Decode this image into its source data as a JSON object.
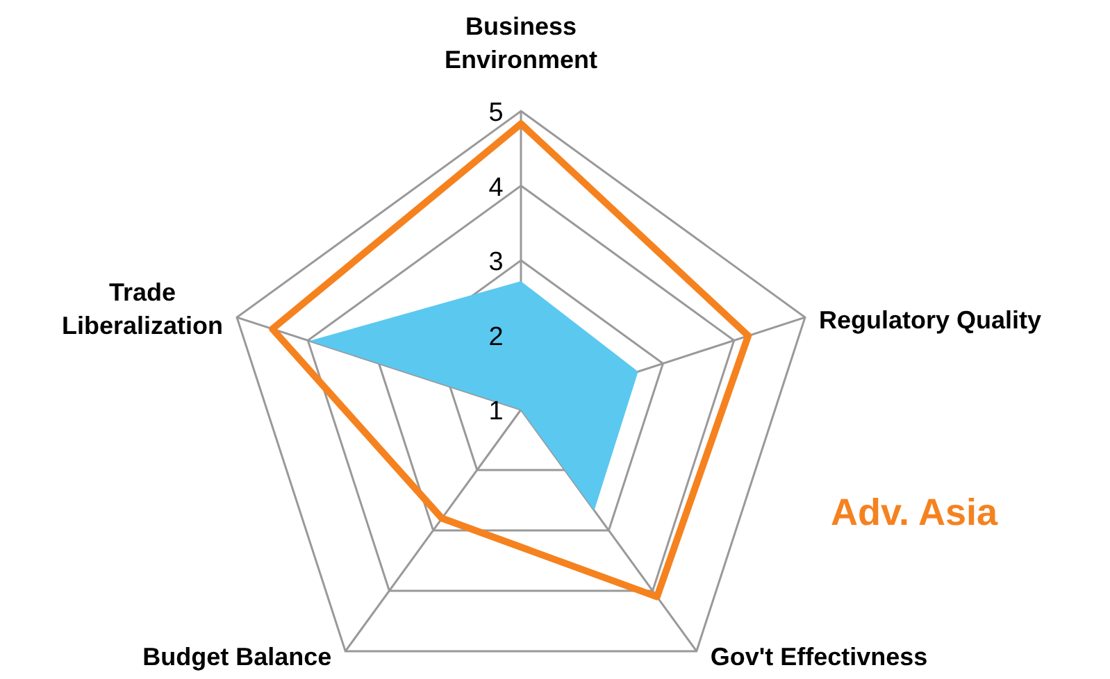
{
  "chart_data": {
    "type": "radar",
    "categories": [
      "Business Environment",
      "Regulatory Quality",
      "Gov't Effectivness",
      "Budget Balance",
      "Trade Liberalization"
    ],
    "ylim": [
      1,
      5
    ],
    "yticks": [
      1,
      2,
      3,
      4,
      5
    ],
    "grid": true,
    "series": [
      {
        "type": "area",
        "color": "#5bc8f0",
        "values": [
          2.72,
          2.65,
          2.67,
          1,
          3.98
        ]
      },
      {
        "name": "Adv. Asia",
        "color": "#f5821f",
        "values": [
          4.83,
          4.2,
          4.1,
          2.8,
          4.5
        ]
      }
    ]
  }
}
